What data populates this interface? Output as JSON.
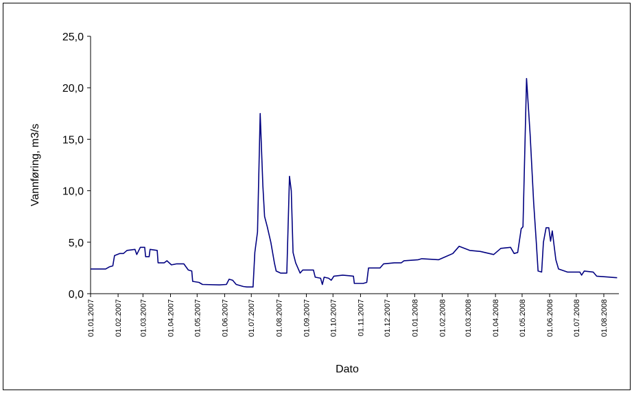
{
  "chart_data": {
    "type": "line",
    "ylabel": "Vannføring, m3/s",
    "xlabel": "Dato",
    "x": [
      "01.01.2007",
      "18.01.2007",
      "22.01.2007",
      "26.01.2007",
      "28.01.2007",
      "03.02.2007",
      "07.02.2007",
      "11.02.2007",
      "20.02.2007",
      "22.02.2007",
      "26.02.2007",
      "03.03.2007",
      "04.03.2007",
      "08.03.2007",
      "09.03.2007",
      "17.03.2007",
      "18.03.2007",
      "25.03.2007",
      "28.03.2007",
      "02.04.2007",
      "08.04.2007",
      "16.04.2007",
      "21.04.2007",
      "25.04.2007",
      "26.04.2007",
      "03.05.2007",
      "07.05.2007",
      "26.05.2007",
      "03.06.2007",
      "06.06.2007",
      "10.06.2007",
      "14.06.2007",
      "22.06.2007",
      "26.06.2007",
      "03.07.2007",
      "05.07.2007",
      "08.07.2007",
      "11.07.2007",
      "14.07.2007",
      "16.07.2007",
      "19.07.2007",
      "23.07.2007",
      "27.07.2007",
      "29.07.2007",
      "03.08.2007",
      "10.08.2007",
      "13.08.2007",
      "15.08.2007",
      "17.08.2007",
      "20.08.2007",
      "25.08.2007",
      "28.08.2007",
      "09.09.2007",
      "11.09.2007",
      "17.09.2007",
      "19.09.2007",
      "21.09.2007",
      "26.09.2007",
      "29.09.2007",
      "02.10.2007",
      "12.10.2007",
      "24.10.2007",
      "25.10.2007",
      "04.11.2007",
      "08.11.2007",
      "10.11.2007",
      "23.11.2007",
      "27.11.2007",
      "09.12.2007",
      "17.12.2007",
      "20.12.2007",
      "05.01.2008",
      "09.01.2008",
      "28.01.2008",
      "05.02.2008",
      "13.02.2008",
      "20.02.2008",
      "03.03.2008",
      "15.03.2008",
      "30.03.2008",
      "07.04.2008",
      "18.04.2008",
      "22.04.2008",
      "26.04.2008",
      "30.04.2008",
      "02.05.2008",
      "06.05.2008",
      "10.05.2008",
      "14.05.2008",
      "17.05.2008",
      "19.05.2008",
      "23.05.2008",
      "25.05.2008",
      "28.05.2008",
      "31.05.2008",
      "02.06.2008",
      "04.06.2008",
      "08.06.2008",
      "11.06.2008",
      "21.06.2008",
      "05.07.2008",
      "07.07.2008",
      "10.07.2008",
      "20.07.2008",
      "24.07.2008",
      "16.08.2008"
    ],
    "series": [
      {
        "color": "#000080",
        "values": [
          2.4,
          2.4,
          2.6,
          2.7,
          3.7,
          3.9,
          3.9,
          4.2,
          4.3,
          3.8,
          4.5,
          4.5,
          3.6,
          3.6,
          4.3,
          4.2,
          3.0,
          3.0,
          3.2,
          2.8,
          2.9,
          2.9,
          2.3,
          2.2,
          1.2,
          1.1,
          0.9,
          0.85,
          0.9,
          1.4,
          1.3,
          0.9,
          0.7,
          0.65,
          0.65,
          4.0,
          6.0,
          17.5,
          10.5,
          7.5,
          6.5,
          5.0,
          3.0,
          2.2,
          2.0,
          2.0,
          11.4,
          10.0,
          4.0,
          3.0,
          2.0,
          2.3,
          2.3,
          1.6,
          1.5,
          0.9,
          1.6,
          1.5,
          1.3,
          1.7,
          1.8,
          1.7,
          1.0,
          1.0,
          1.1,
          2.5,
          2.5,
          2.9,
          3.0,
          3.0,
          3.2,
          3.3,
          3.4,
          3.3,
          3.6,
          3.9,
          4.6,
          4.2,
          4.1,
          3.8,
          4.4,
          4.5,
          3.9,
          4.0,
          6.3,
          6.5,
          20.9,
          15.5,
          8.8,
          5.0,
          2.2,
          2.1,
          5.0,
          6.4,
          6.4,
          5.1,
          6.1,
          3.3,
          2.4,
          2.1,
          2.1,
          1.8,
          2.2,
          2.1,
          1.7,
          1.55
        ]
      }
    ],
    "xlim": [
      "01.01.2007",
      "18.08.2008"
    ],
    "xticks": [
      "01.01.2007",
      "01.02.2007",
      "01.03.2007",
      "01.04.2007",
      "01.05.2007",
      "01.06.2007",
      "01.07.2007",
      "01.08.2007",
      "01.09.2007",
      "01.10.2007",
      "01.11.2007",
      "01.12.2007",
      "01.01.2008",
      "01.02.2008",
      "01.03.2008",
      "01.04.2008",
      "01.05.2008",
      "01.06.2008",
      "01.07.2008",
      "01.08.2008"
    ],
    "ylim": [
      0,
      25
    ],
    "yticks": [
      {
        "value": 0,
        "label": "0,0"
      },
      {
        "value": 5,
        "label": "5,0"
      },
      {
        "value": 10,
        "label": "10,0"
      },
      {
        "value": 15,
        "label": "15,0"
      },
      {
        "value": 20,
        "label": "20,0"
      },
      {
        "value": 25,
        "label": "25,0"
      }
    ]
  }
}
